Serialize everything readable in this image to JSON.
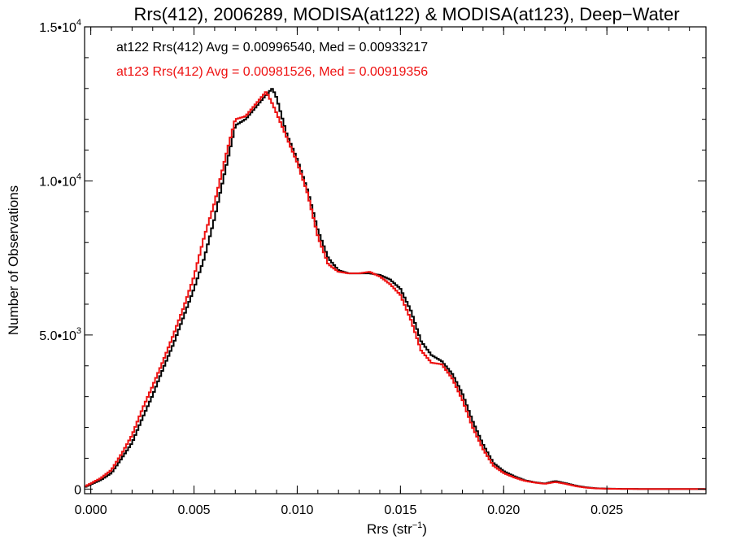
{
  "chart_data": {
    "type": "line",
    "title": "Rrs(412), 2006289, MODISA(at122) & MODISA(at123), Deep−Water",
    "xlabel": "Rrs (str",
    "xlabel_sup": "−1",
    "xlabel_close": ")",
    "ylabel": "Number of Observations",
    "xlim": [
      -0.0003,
      0.0298
    ],
    "ylim": [
      -150,
      15000
    ],
    "grid": false,
    "step": true,
    "x_ticks": [
      {
        "value": 0.0,
        "label": "0.000"
      },
      {
        "value": 0.005,
        "label": "0.005"
      },
      {
        "value": 0.01,
        "label": "0.010"
      },
      {
        "value": 0.015,
        "label": "0.015"
      },
      {
        "value": 0.02,
        "label": "0.020"
      },
      {
        "value": 0.025,
        "label": "0.025"
      }
    ],
    "y_ticks": [
      {
        "value": 0,
        "mantissa": "0",
        "exponent": ""
      },
      {
        "value": 5000,
        "mantissa": "5.0•10",
        "exponent": "3"
      },
      {
        "value": 10000,
        "mantissa": "1.0•10",
        "exponent": "4"
      },
      {
        "value": 15000,
        "mantissa": "1.5•10",
        "exponent": "4"
      }
    ],
    "annotations": [
      {
        "text": "at122 Rrs(412) Avg = 0.00996540, Med = 0.00933217",
        "color": "#000000"
      },
      {
        "text": "at123 Rrs(412) Avg = 0.00981526, Med = 0.00919356",
        "color": "#ee1111"
      }
    ],
    "series": [
      {
        "color": "#000000",
        "x": [
          -0.0003,
          0.0,
          0.0005,
          0.001,
          0.0015,
          0.002,
          0.0025,
          0.003,
          0.0035,
          0.004,
          0.0045,
          0.005,
          0.0055,
          0.006,
          0.0065,
          0.007,
          0.0075,
          0.008,
          0.0085,
          0.0088,
          0.009,
          0.0095,
          0.01,
          0.0105,
          0.011,
          0.0115,
          0.012,
          0.0125,
          0.013,
          0.0135,
          0.014,
          0.0145,
          0.015,
          0.0155,
          0.016,
          0.0165,
          0.017,
          0.0175,
          0.018,
          0.0185,
          0.019,
          0.0195,
          0.02,
          0.0205,
          0.021,
          0.0215,
          0.022,
          0.0225,
          0.023,
          0.0235,
          0.024,
          0.0245,
          0.025,
          0.0255,
          0.026,
          0.027,
          0.028,
          0.0298
        ],
        "y": [
          60,
          150,
          300,
          520,
          1000,
          1500,
          2300,
          3050,
          3900,
          4700,
          5600,
          6500,
          7500,
          8800,
          10300,
          11800,
          12000,
          12400,
          12800,
          13000,
          12700,
          11500,
          10700,
          9700,
          8400,
          7500,
          7100,
          7000,
          7000,
          7000,
          6950,
          6800,
          6500,
          5800,
          4800,
          4350,
          4150,
          3750,
          3100,
          2200,
          1450,
          850,
          580,
          420,
          290,
          220,
          180,
          260,
          190,
          110,
          55,
          25,
          15,
          8,
          5,
          2,
          1,
          0
        ]
      },
      {
        "color": "#ee1111",
        "x": [
          -0.0003,
          0.0,
          0.0005,
          0.001,
          0.0015,
          0.002,
          0.0025,
          0.003,
          0.0035,
          0.004,
          0.0045,
          0.005,
          0.0055,
          0.006,
          0.0065,
          0.007,
          0.0075,
          0.008,
          0.0085,
          0.0088,
          0.009,
          0.0095,
          0.01,
          0.0105,
          0.011,
          0.0115,
          0.012,
          0.0125,
          0.013,
          0.0135,
          0.014,
          0.0145,
          0.015,
          0.0155,
          0.016,
          0.0165,
          0.017,
          0.0175,
          0.018,
          0.0185,
          0.019,
          0.0195,
          0.02,
          0.0205,
          0.021,
          0.0215,
          0.022,
          0.0225,
          0.023,
          0.0235,
          0.024,
          0.0245,
          0.025,
          0.0255,
          0.026,
          0.027,
          0.028,
          0.0298
        ],
        "y": [
          80,
          180,
          360,
          620,
          1150,
          1750,
          2600,
          3350,
          4150,
          5000,
          5900,
          6900,
          8200,
          9300,
          10700,
          12000,
          12100,
          12500,
          12900,
          12500,
          12200,
          11400,
          10600,
          9600,
          8200,
          7300,
          7050,
          7000,
          7000,
          7050,
          6900,
          6650,
          6300,
          5500,
          4500,
          4100,
          4050,
          3600,
          2900,
          2000,
          1300,
          760,
          520,
          380,
          270,
          210,
          170,
          230,
          170,
          95,
          45,
          20,
          12,
          6,
          4,
          2,
          1,
          0
        ]
      }
    ]
  }
}
